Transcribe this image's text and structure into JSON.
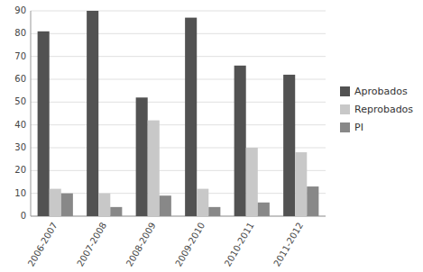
{
  "chart_data": {
    "type": "bar",
    "categories": [
      "2006-2007",
      "2007-2008",
      "2008-2009",
      "2009-2010",
      "2010-2011",
      "2011-2012"
    ],
    "series": [
      {
        "name": "Aprobados",
        "color": "#525252",
        "values": [
          81,
          90,
          52,
          87,
          66,
          62
        ]
      },
      {
        "name": "Reprobados",
        "color": "#c8c8c8",
        "values": [
          12,
          10,
          42,
          12,
          30,
          28
        ]
      },
      {
        "name": "PI",
        "color": "#888888",
        "values": [
          10,
          4,
          9,
          4,
          6,
          13
        ]
      }
    ],
    "ylim": [
      0,
      90
    ],
    "yticks": [
      0,
      10,
      20,
      30,
      40,
      50,
      60,
      70,
      80,
      90
    ],
    "grid": true,
    "legend": "right"
  }
}
